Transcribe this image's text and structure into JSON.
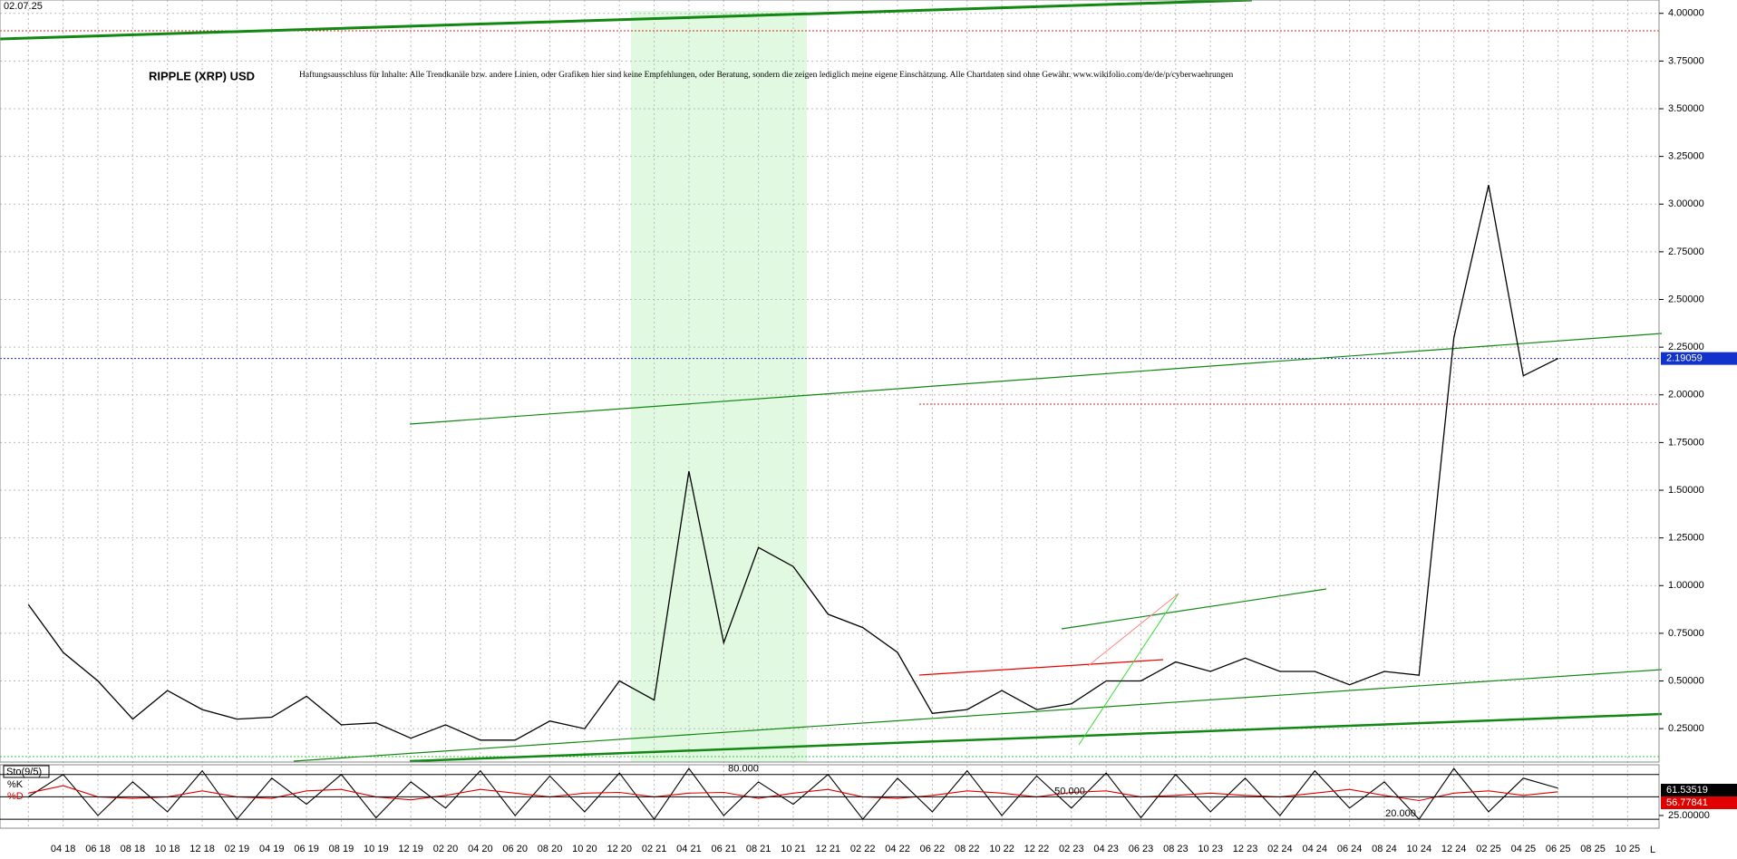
{
  "date_label": "02.07.25",
  "chart_data": [
    {
      "type": "line",
      "title": "RIPPLE (XRP) USD",
      "subtitle": "Haftungsausschluss für Inhalte: Alle Trendkanäle bzw. andere Linien, oder Grafiken hier sind keine Empfehlungen, oder Beratung, sondern die zeigen lediglich meine eigene Einschätzung. Alle Chartdaten sind ohne Gewähr. www.wikifolio.com/de/de/p/cyberwaehrungen",
      "categories": [
        null,
        "04 18",
        "06 18",
        "08 18",
        "10 18",
        "12 18",
        "02 19",
        "04 19",
        "06 19",
        "08 19",
        "10 19",
        "12 19",
        "02 20",
        "04 20",
        "06 20",
        "08 20",
        "10 20",
        "12 20",
        "02 21",
        "04 21",
        "06 21",
        "08 21",
        "10 21",
        "12 21",
        "02 22",
        "04 22",
        "06 22",
        "08 22",
        "10 22",
        "12 22",
        "02 23",
        "04 23",
        "06 23",
        "08 23",
        "10 23",
        "12 23",
        "02 24",
        "04 24",
        "06 24",
        "08 24",
        "10 24",
        "12 24",
        "02 25",
        "04 25",
        "06 25",
        "08 25",
        "10 25"
      ],
      "values": [
        0.9,
        0.65,
        0.5,
        0.3,
        0.45,
        0.35,
        0.3,
        0.31,
        0.42,
        0.27,
        0.28,
        0.2,
        0.27,
        0.19,
        0.19,
        0.29,
        0.25,
        0.5,
        0.4,
        1.6,
        0.7,
        1.2,
        1.1,
        0.85,
        0.78,
        0.65,
        0.33,
        0.35,
        0.45,
        0.35,
        0.38,
        0.5,
        0.5,
        0.6,
        0.55,
        0.62,
        0.55,
        0.55,
        0.48,
        0.55,
        0.53,
        2.3,
        3.1,
        2.1,
        2.19059,
        null,
        null
      ],
      "color": "#000000",
      "ylim": [
        0.075,
        4.07
      ],
      "yticks": [
        {
          "value": 0.25,
          "label": "0.25000"
        },
        {
          "value": 0.5,
          "label": "0.50000"
        },
        {
          "value": 0.75,
          "label": "0.75000"
        },
        {
          "value": 1,
          "label": "1.00000"
        },
        {
          "value": 1.25,
          "label": "1.25000"
        },
        {
          "value": 1.5,
          "label": "1.50000"
        },
        {
          "value": 1.75,
          "label": "1.75000"
        },
        {
          "value": 2,
          "label": "2.00000"
        },
        {
          "value": 2.25,
          "label": "2.25000"
        },
        {
          "value": 2.5,
          "label": "2.50000"
        },
        {
          "value": 2.75,
          "label": "2.75000"
        },
        {
          "value": 3,
          "label": "3.00000"
        },
        {
          "value": 3.25,
          "label": "3.25000"
        },
        {
          "value": 3.5,
          "label": "3.50000"
        },
        {
          "value": 3.75,
          "label": "3.75000"
        },
        {
          "value": 4,
          "label": "4.00000"
        }
      ],
      "grid": true
    },
    {
      "type": "line",
      "title": "Sto(9/5)",
      "series": [
        {
          "name": "%K",
          "color": "#000000",
          "values": [
            50,
            80,
            25,
            70,
            30,
            85,
            20,
            75,
            40,
            80,
            22,
            70,
            35,
            85,
            25,
            78,
            30,
            82,
            20,
            88,
            25,
            70,
            40,
            80,
            20,
            75,
            30,
            85,
            25,
            78,
            35,
            82,
            22,
            80,
            30,
            75,
            25,
            85,
            35,
            70,
            20,
            88,
            30,
            75,
            61.53519,
            null,
            null
          ]
        },
        {
          "name": "%D",
          "color": "#e00000",
          "values": [
            55,
            65,
            50,
            48,
            50,
            58,
            50,
            48,
            58,
            60,
            50,
            46,
            52,
            60,
            55,
            50,
            55,
            56,
            50,
            55,
            56,
            48,
            55,
            60,
            50,
            48,
            52,
            58,
            55,
            50,
            56,
            58,
            50,
            52,
            55,
            52,
            50,
            55,
            60,
            52,
            45,
            55,
            58,
            52,
            56.77841,
            null,
            null
          ]
        }
      ],
      "ylim": [
        8,
        93
      ],
      "yticks": [
        {
          "value": 80,
          "label": "80.000"
        },
        {
          "value": 50,
          "label": "50.000"
        },
        {
          "value": 20,
          "label": "20.000"
        }
      ],
      "y2ticks": [
        {
          "value": 25,
          "label": "25.00000"
        }
      ]
    }
  ]
}
